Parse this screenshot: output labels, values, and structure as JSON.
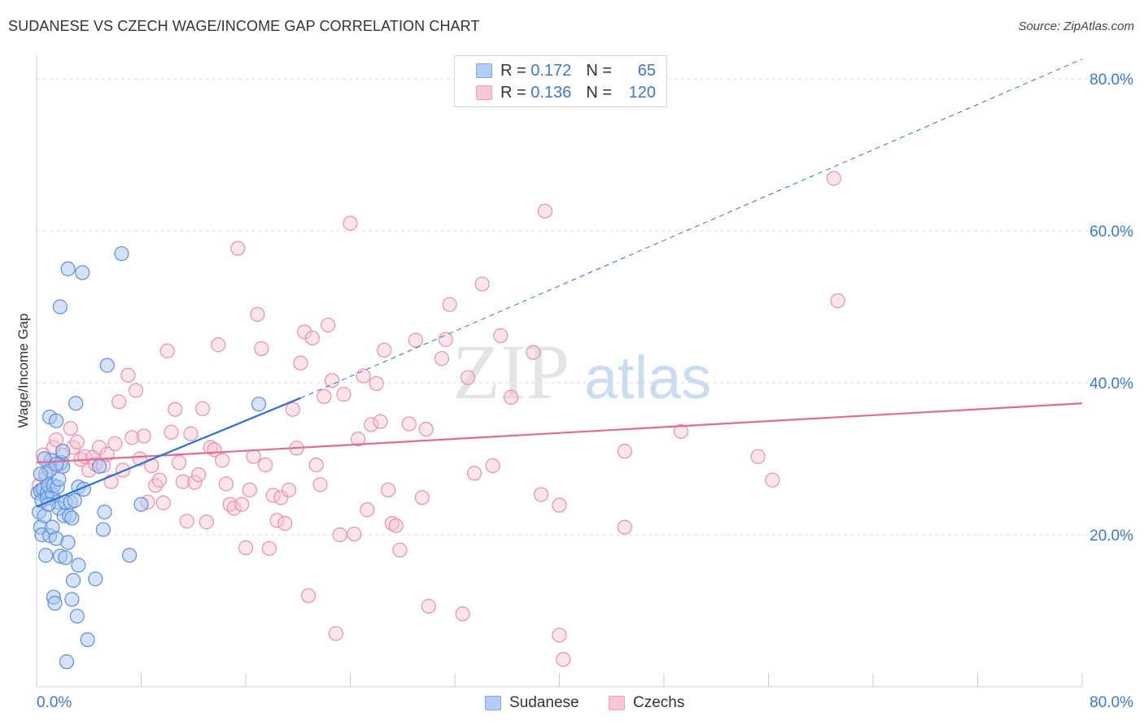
{
  "title": "SUDANESE VS CZECH WAGE/INCOME GAP CORRELATION CHART",
  "source": "Source: ZipAtlas.com",
  "watermark": "ZIPatlas",
  "legend_top": [
    {
      "r_label": "R =",
      "r_value": "0.172",
      "n_label": "N =",
      "n_value": "65"
    },
    {
      "r_label": "R =",
      "r_value": "0.136",
      "n_label": "N =",
      "n_value": "120"
    }
  ],
  "colors": {
    "sudanese_fill": "#a9c8f4",
    "sudanese_stroke": "#5a8fd8",
    "sudanese_line": "#2a6fd6",
    "czech_fill": "#f8c3d3",
    "czech_stroke": "#e88fac",
    "czech_line": "#e46a93",
    "axis_label": "#3b78d0",
    "grid": "#dddddd"
  },
  "chart_data": {
    "type": "scatter",
    "title": "SUDANESE VS CZECH WAGE/INCOME GAP CORRELATION CHART",
    "xlabel": "",
    "ylabel": "Wage/Income Gap",
    "xlim": [
      0,
      80
    ],
    "ylim": [
      0,
      80
    ],
    "x_tick_labels": [
      "0.0%",
      "80.0%"
    ],
    "y_tick_labels": [
      "20.0%",
      "40.0%",
      "60.0%",
      "80.0%"
    ],
    "y_ticks": [
      20,
      40,
      60,
      80
    ],
    "legend": [
      "Sudanese",
      "Czechs"
    ],
    "series": [
      {
        "name": "Sudanese",
        "r": 0.172,
        "n": 65,
        "trend": {
          "x0": 0,
          "y0": 23.7,
          "x1": 20.2,
          "y1": 38.0,
          "dash_to_x": 80,
          "dash_to_y": 82.6
        },
        "points": [
          [
            0.1,
            25.5
          ],
          [
            0.2,
            23.0
          ],
          [
            0.3,
            21.0
          ],
          [
            0.3,
            25.8
          ],
          [
            0.4,
            20.0
          ],
          [
            0.4,
            24.5
          ],
          [
            0.5,
            26.0
          ],
          [
            0.6,
            22.5
          ],
          [
            0.7,
            28.0
          ],
          [
            0.7,
            17.3
          ],
          [
            0.8,
            25.5
          ],
          [
            0.8,
            24.8
          ],
          [
            0.9,
            26.5
          ],
          [
            1.0,
            35.5
          ],
          [
            1.0,
            19.9
          ],
          [
            1.1,
            29.8
          ],
          [
            1.2,
            21.0
          ],
          [
            1.2,
            25.3
          ],
          [
            1.3,
            26.5
          ],
          [
            1.3,
            11.8
          ],
          [
            1.4,
            11.0
          ],
          [
            1.5,
            35.0
          ],
          [
            1.5,
            19.5
          ],
          [
            1.6,
            26.3
          ],
          [
            1.6,
            24.3
          ],
          [
            1.7,
            27.3
          ],
          [
            1.7,
            23.5
          ],
          [
            1.8,
            17.2
          ],
          [
            1.8,
            50.0
          ],
          [
            1.9,
            29.5
          ],
          [
            2.0,
            31.0
          ],
          [
            2.1,
            22.5
          ],
          [
            2.2,
            17.0
          ],
          [
            2.2,
            24.3
          ],
          [
            2.3,
            3.3
          ],
          [
            2.4,
            55.0
          ],
          [
            2.4,
            19.0
          ],
          [
            2.5,
            22.5
          ],
          [
            2.6,
            24.3
          ],
          [
            2.7,
            22.2
          ],
          [
            2.7,
            11.5
          ],
          [
            2.8,
            14.0
          ],
          [
            2.9,
            24.5
          ],
          [
            3.0,
            37.3
          ],
          [
            3.1,
            9.3
          ],
          [
            3.2,
            16.0
          ],
          [
            3.2,
            26.3
          ],
          [
            3.5,
            54.5
          ],
          [
            3.6,
            26.0
          ],
          [
            3.9,
            6.2
          ],
          [
            4.5,
            14.2
          ],
          [
            5.1,
            20.7
          ],
          [
            5.2,
            23.0
          ],
          [
            5.4,
            42.3
          ],
          [
            6.5,
            57.0
          ],
          [
            7.1,
            17.3
          ],
          [
            8.0,
            24.0
          ],
          [
            17.0,
            37.2
          ],
          [
            1.0,
            28.5
          ],
          [
            0.6,
            30.0
          ],
          [
            2.0,
            29.0
          ],
          [
            4.8,
            29.0
          ],
          [
            0.9,
            24.0
          ],
          [
            1.5,
            29.3
          ],
          [
            0.3,
            28.0
          ]
        ]
      },
      {
        "name": "Czechs",
        "r": 0.136,
        "n": 120,
        "trend": {
          "x0": 0,
          "y0": 29.5,
          "x1": 80,
          "y1": 37.3
        },
        "points": [
          [
            0.2,
            26.5
          ],
          [
            0.5,
            30.5
          ],
          [
            0.7,
            27.5
          ],
          [
            0.9,
            29.0
          ],
          [
            1.3,
            31.5
          ],
          [
            1.5,
            32.5
          ],
          [
            1.8,
            29.3
          ],
          [
            2.0,
            30.5
          ],
          [
            2.6,
            34.0
          ],
          [
            2.8,
            31.5
          ],
          [
            3.1,
            32.2
          ],
          [
            3.4,
            29.9
          ],
          [
            3.7,
            30.3
          ],
          [
            4.0,
            28.5
          ],
          [
            4.3,
            30.2
          ],
          [
            4.5,
            29.3
          ],
          [
            4.8,
            31.5
          ],
          [
            5.1,
            29.1
          ],
          [
            5.4,
            30.6
          ],
          [
            5.7,
            27.0
          ],
          [
            6.0,
            32.0
          ],
          [
            6.3,
            37.5
          ],
          [
            6.6,
            28.5
          ],
          [
            7.0,
            41.0
          ],
          [
            7.3,
            32.8
          ],
          [
            7.6,
            39.0
          ],
          [
            7.9,
            30.0
          ],
          [
            8.2,
            33.0
          ],
          [
            8.5,
            24.3
          ],
          [
            8.8,
            29.1
          ],
          [
            9.1,
            26.5
          ],
          [
            9.4,
            27.2
          ],
          [
            9.7,
            24.2
          ],
          [
            10.0,
            44.2
          ],
          [
            10.3,
            33.5
          ],
          [
            10.6,
            36.5
          ],
          [
            10.9,
            29.5
          ],
          [
            11.2,
            27.0
          ],
          [
            11.5,
            21.8
          ],
          [
            11.8,
            33.3
          ],
          [
            12.1,
            26.9
          ],
          [
            12.4,
            27.9
          ],
          [
            12.7,
            36.6
          ],
          [
            13.0,
            21.7
          ],
          [
            13.3,
            31.5
          ],
          [
            13.6,
            31.2
          ],
          [
            13.9,
            45.0
          ],
          [
            14.2,
            29.8
          ],
          [
            14.5,
            26.7
          ],
          [
            14.8,
            24.0
          ],
          [
            15.1,
            23.5
          ],
          [
            15.4,
            57.7
          ],
          [
            15.7,
            24.0
          ],
          [
            16.0,
            18.3
          ],
          [
            16.3,
            25.9
          ],
          [
            16.6,
            30.3
          ],
          [
            16.9,
            49.0
          ],
          [
            17.2,
            44.5
          ],
          [
            17.5,
            29.2
          ],
          [
            17.8,
            18.2
          ],
          [
            18.1,
            25.2
          ],
          [
            18.4,
            21.9
          ],
          [
            18.7,
            24.9
          ],
          [
            19.0,
            21.5
          ],
          [
            19.3,
            25.9
          ],
          [
            19.6,
            36.5
          ],
          [
            19.9,
            31.4
          ],
          [
            20.2,
            42.6
          ],
          [
            20.5,
            46.7
          ],
          [
            20.8,
            12.0
          ],
          [
            21.1,
            45.9
          ],
          [
            21.4,
            29.2
          ],
          [
            21.7,
            26.6
          ],
          [
            22.0,
            38.2
          ],
          [
            22.3,
            47.6
          ],
          [
            22.6,
            40.3
          ],
          [
            22.9,
            7.0
          ],
          [
            23.2,
            20.0
          ],
          [
            23.5,
            38.5
          ],
          [
            24.0,
            61.0
          ],
          [
            24.3,
            20.1
          ],
          [
            24.6,
            32.6
          ],
          [
            25.0,
            40.9
          ],
          [
            25.3,
            23.3
          ],
          [
            25.6,
            34.5
          ],
          [
            26.0,
            39.9
          ],
          [
            26.3,
            34.9
          ],
          [
            26.6,
            44.3
          ],
          [
            26.9,
            25.9
          ],
          [
            27.2,
            21.5
          ],
          [
            27.5,
            21.2
          ],
          [
            27.8,
            18.0
          ],
          [
            28.5,
            34.6
          ],
          [
            29.0,
            45.6
          ],
          [
            29.5,
            24.9
          ],
          [
            29.8,
            33.9
          ],
          [
            30.0,
            10.6
          ],
          [
            31.0,
            43.2
          ],
          [
            31.3,
            45.7
          ],
          [
            31.6,
            50.3
          ],
          [
            32.6,
            9.6
          ],
          [
            33.0,
            40.7
          ],
          [
            33.5,
            28.1
          ],
          [
            34.1,
            53.0
          ],
          [
            34.9,
            29.1
          ],
          [
            35.5,
            46.2
          ],
          [
            36.3,
            38.1
          ],
          [
            38.0,
            44.0
          ],
          [
            38.6,
            25.3
          ],
          [
            38.9,
            62.6
          ],
          [
            40.0,
            23.9
          ],
          [
            40.0,
            6.8
          ],
          [
            40.3,
            3.6
          ],
          [
            45.0,
            31.0
          ],
          [
            45.0,
            21.0
          ],
          [
            49.3,
            33.6
          ],
          [
            55.2,
            30.3
          ],
          [
            56.3,
            27.2
          ],
          [
            61.0,
            66.9
          ],
          [
            61.3,
            50.8
          ]
        ]
      }
    ]
  }
}
